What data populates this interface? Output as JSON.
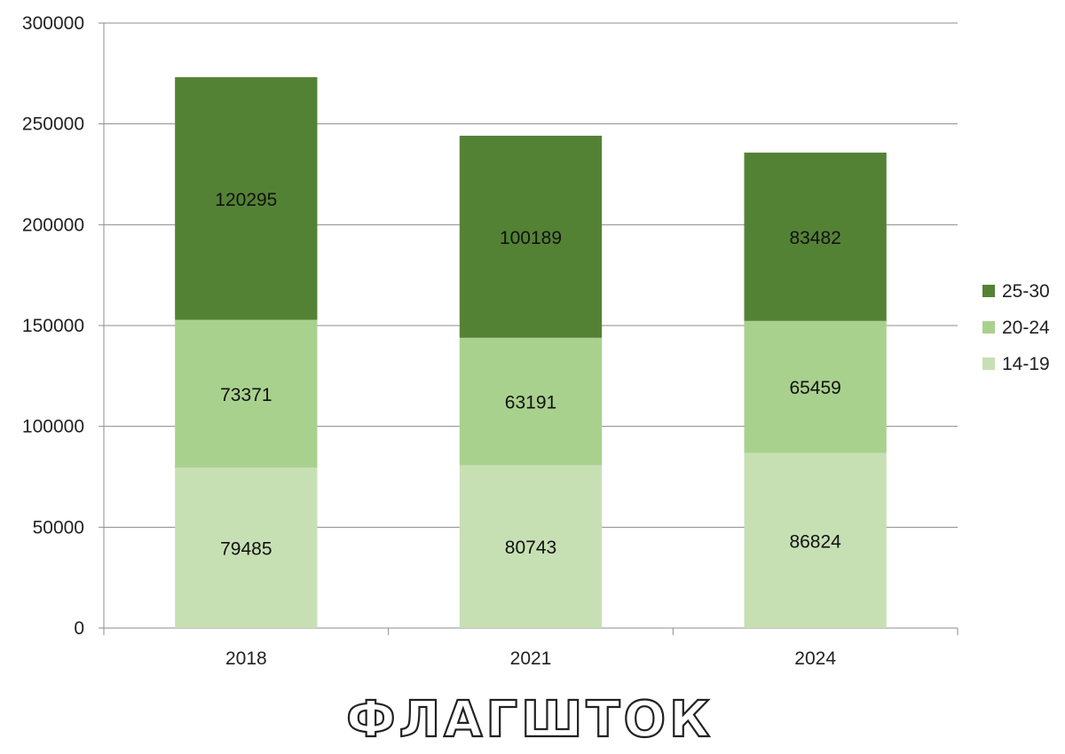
{
  "chart_data": {
    "type": "bar",
    "stacked": true,
    "categories": [
      "2018",
      "2021",
      "2024"
    ],
    "series": [
      {
        "name": "14-19",
        "values": [
          79485,
          80743,
          86824
        ],
        "color": "#c6e0b4"
      },
      {
        "name": "20-24",
        "values": [
          73371,
          63191,
          65459
        ],
        "color": "#a9d18e"
      },
      {
        "name": "25-30",
        "values": [
          120295,
          100189,
          83482
        ],
        "color": "#548235"
      }
    ],
    "legend_order": [
      "25-30",
      "20-24",
      "14-19"
    ],
    "yticks": [
      0,
      50000,
      100000,
      150000,
      200000,
      250000,
      300000
    ],
    "ylim": [
      0,
      300000
    ],
    "grid": true,
    "legend_position": "right",
    "title": "",
    "xlabel": "",
    "ylabel": ""
  },
  "watermark": "ФЛАГШТОК"
}
